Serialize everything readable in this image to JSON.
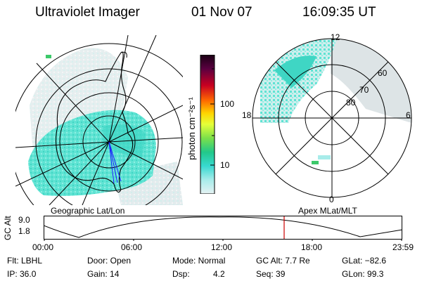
{
  "header": {
    "title": "Ultraviolet Imager",
    "date": "01 Nov 07",
    "time": "16:09:35 UT"
  },
  "polar_plot": {
    "lat_labels": [
      "80",
      "70",
      "60"
    ],
    "mlt_labels": {
      "top": "12",
      "bottom": "0",
      "left": "18",
      "right": "6"
    }
  },
  "colorbar": {
    "unit_label": "photon cm⁻²s⁻¹",
    "tick_labels": [
      "100",
      "10"
    ]
  },
  "projections": {
    "left": "Geographic Lat/Lon",
    "right": "Apex MLat/MLT"
  },
  "altitude_plot": {
    "axis_label": "GC Alt",
    "y_ticks": [
      "9.0",
      "1.8"
    ],
    "x_ticks": [
      "00:00",
      "06:00",
      "12:00",
      "18:00",
      "23:59"
    ],
    "current_time_color": "#cc0000"
  },
  "footer": {
    "row1": {
      "flt": "Flt: LBHL",
      "door": "Door: Open",
      "mode": "Mode: Normal",
      "gc_alt": "GC Alt: 7.7 Re",
      "glat": "GLat: −82.6"
    },
    "row2": {
      "ip": "IP: 36.0",
      "gain": "Gain: 14",
      "dsp_label": "Dsp:",
      "dsp_value": "4.2",
      "seq": "Seq: 39",
      "glon": "GLon: 99.3"
    }
  },
  "colors": {
    "aurora_main": "#5fe3d3",
    "aurora_bright": "#2ec9a8",
    "aurora_faint": "#c6ebe8",
    "aurora_gray": "#d7e0e2",
    "green_spot": "#3dc96a"
  }
}
